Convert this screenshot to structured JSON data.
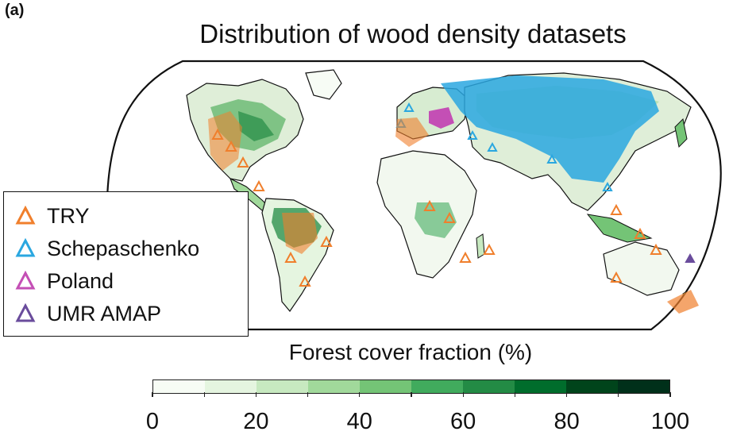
{
  "panel_label": "(a)",
  "title": "Distribution of wood density datasets",
  "legend": [
    {
      "label": "TRY",
      "color": "#f07f2c"
    },
    {
      "label": "Schepaschenko",
      "color": "#2aa7e0"
    },
    {
      "label": "Poland",
      "color": "#c44fb5"
    },
    {
      "label": "UMR AMAP",
      "color": "#6a4c9c"
    }
  ],
  "colorbar": {
    "title": "Forest cover fraction (%)",
    "ticks": [
      "0",
      "20",
      "40",
      "60",
      "80",
      "100"
    ],
    "range": [
      0,
      100
    ],
    "colors": [
      "#f7fcf5",
      "#e5f5e0",
      "#c7e9c0",
      "#a1d99b",
      "#74c476",
      "#41ab5d",
      "#238b45",
      "#006d2c",
      "#00441b",
      "#00301a"
    ]
  },
  "map": {
    "projection": "robinson",
    "ocean_color": "#ffffff",
    "land_color": "#f2f8ef",
    "coast_color": "#000000"
  }
}
